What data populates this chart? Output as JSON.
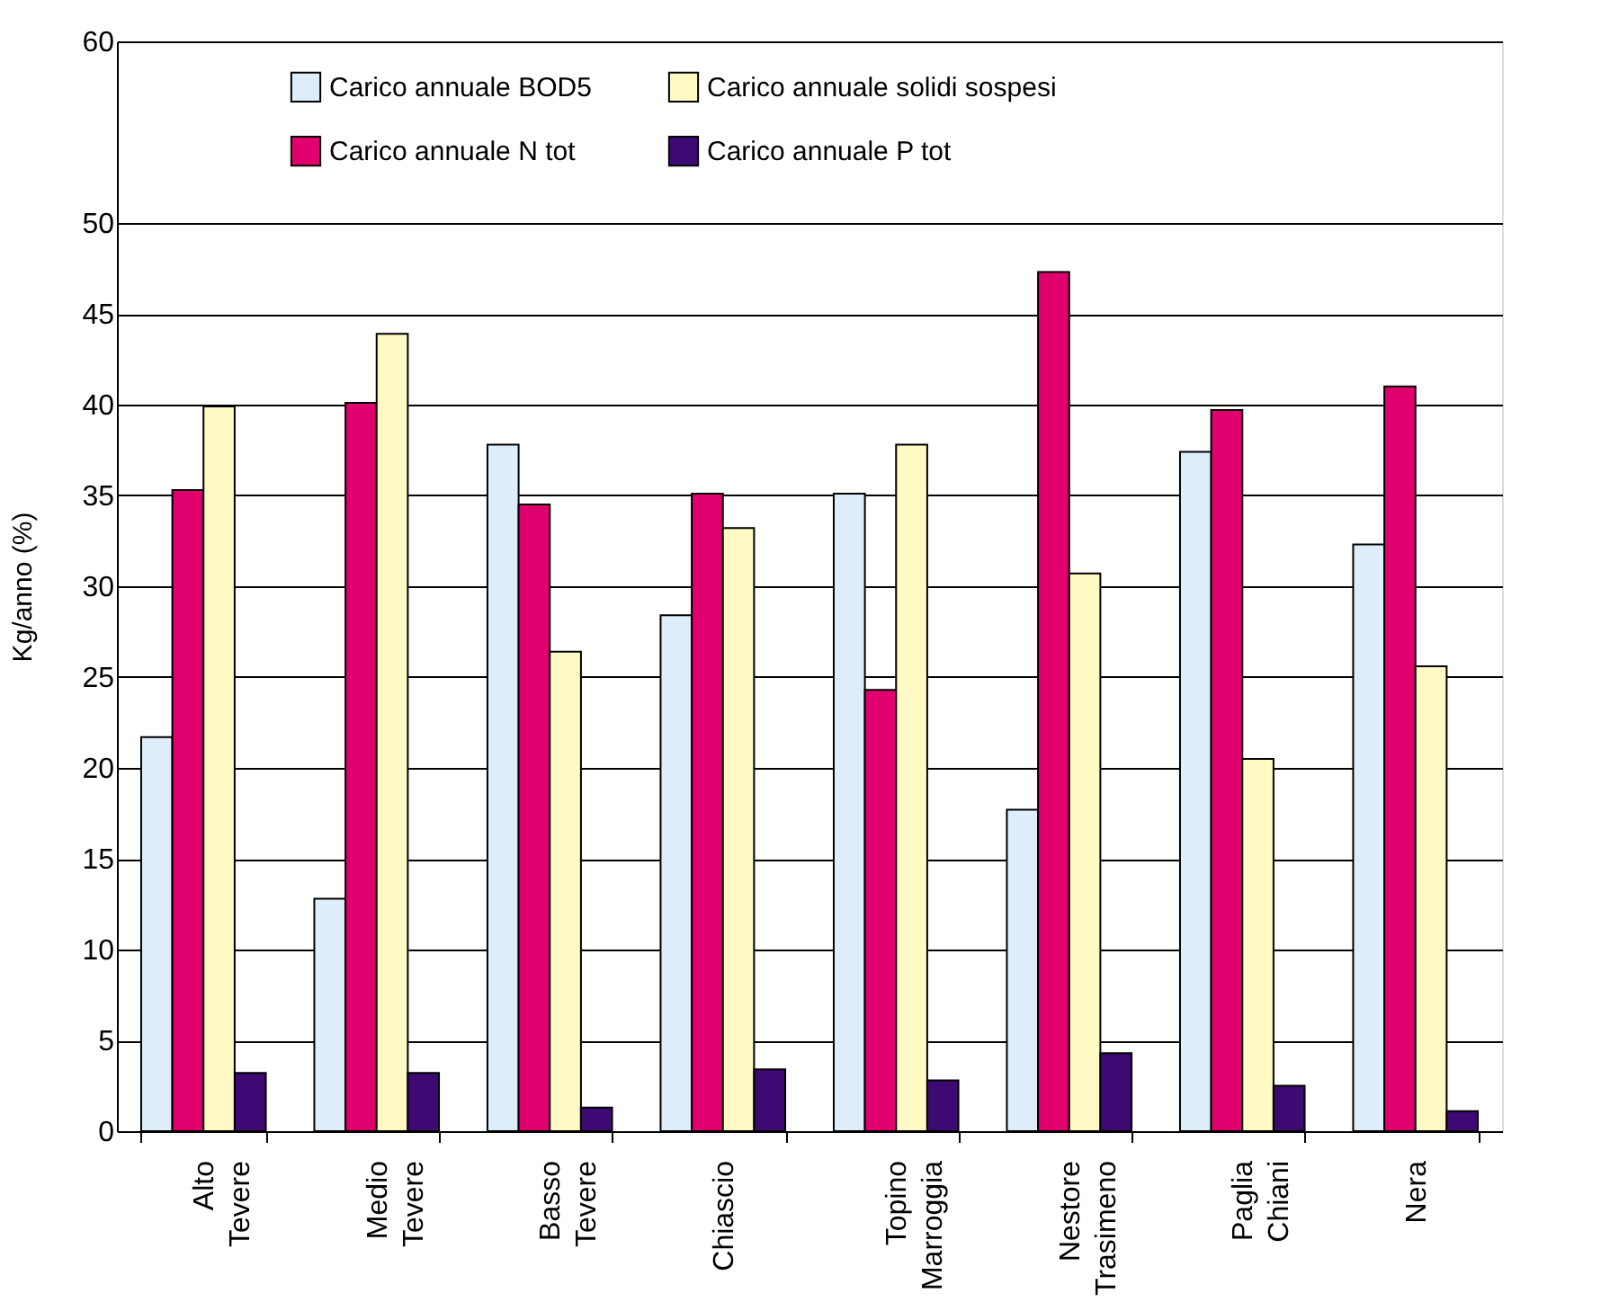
{
  "chart_data": {
    "type": "bar",
    "ylabel": "Kg/anno (%)",
    "categories": [
      "Alto Tevere",
      "Medio Tevere",
      "Basso Tevere",
      "Chiascio",
      "Topino Marroggia",
      "Nestore Trasimeno",
      "Paglia Chiani",
      "Nera"
    ],
    "series": [
      {
        "name": "Carico annuale BOD5",
        "color": "#ddeefa",
        "values": [
          21.7,
          12.8,
          37.8,
          28.4,
          35.1,
          17.7,
          37.4,
          32.3
        ]
      },
      {
        "name": "Carico annuale N tot",
        "color": "#e0006e",
        "values": [
          35.3,
          40.1,
          34.5,
          35.1,
          24.3,
          47.3,
          39.7,
          41.0
        ]
      },
      {
        "name": "Carico annuale solidi sospesi",
        "color": "#fffac4",
        "values": [
          39.9,
          43.9,
          26.4,
          33.2,
          37.8,
          30.7,
          20.5,
          25.6
        ]
      },
      {
        "name": "Carico annuale P tot",
        "color": "#3d0a73",
        "values": [
          3.2,
          3.2,
          1.3,
          3.4,
          2.8,
          4.3,
          2.5,
          1.1
        ]
      }
    ],
    "ylim": [
      0,
      60
    ],
    "yticks": [
      0,
      5,
      10,
      15,
      20,
      25,
      30,
      35,
      40,
      45,
      50,
      60
    ],
    "grid": "y",
    "legend": "top"
  }
}
